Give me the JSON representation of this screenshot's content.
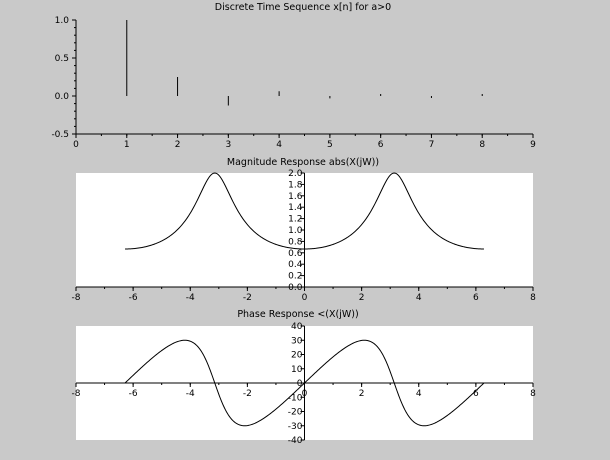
{
  "chart_data": [
    {
      "type": "stem",
      "title": "Discrete Time Sequence x[n] for a>0",
      "xlim": [
        0,
        9
      ],
      "ylim": [
        -0.5,
        1.0
      ],
      "xticks": [
        "0",
        "1",
        "2",
        "3",
        "4",
        "5",
        "6",
        "7",
        "8",
        "9"
      ],
      "yticks": [
        "1.0",
        "0.5",
        "0.0",
        "-0.5"
      ],
      "x": [
        1,
        2,
        3,
        4,
        5,
        6,
        7,
        8
      ],
      "y": [
        1.0,
        0.25,
        -0.125,
        0.0625,
        -0.03125,
        0.015625,
        -0.0078,
        0.0039
      ],
      "grid": false
    },
    {
      "type": "line",
      "title": "Magnitude Response abs(X(jW))",
      "xlim": [
        -8,
        8
      ],
      "ylim": [
        0,
        2.0
      ],
      "xticks": [
        "-8",
        "-6",
        "-4",
        "-2",
        "0",
        "2",
        "4",
        "6",
        "8"
      ],
      "yticks": [
        "2.0",
        "1.8",
        "1.6",
        "1.4",
        "1.2",
        "1.0",
        "0.8",
        "0.6",
        "0.4",
        "0.2",
        "0.0"
      ],
      "x_range": [
        -6.2832,
        6.2832
      ],
      "formula": "1/|1+0.5 e^{-jw}|",
      "grid": false
    },
    {
      "type": "line",
      "title": "Phase Response <(X(jW))",
      "xlim": [
        -8,
        8
      ],
      "ylim": [
        -40,
        40
      ],
      "xticks": [
        "-8",
        "-6",
        "-4",
        "-2",
        "0",
        "2",
        "4",
        "6",
        "8"
      ],
      "yticks": [
        "40",
        "30",
        "20",
        "10",
        "0",
        "-10",
        "-20",
        "-30",
        "-40"
      ],
      "x_range": [
        -6.2832,
        6.2832
      ],
      "formula": "phase(1/(1+0.5 e^{-jw})) in degrees",
      "grid": false
    }
  ]
}
